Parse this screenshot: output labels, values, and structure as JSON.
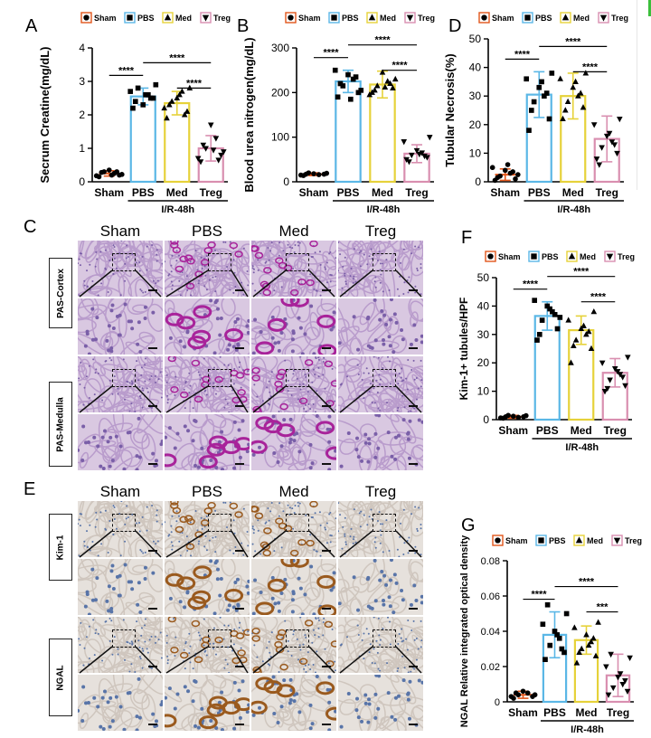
{
  "panel_labels": {
    "a": "A",
    "b": "B",
    "c": "C",
    "d": "D",
    "e": "E",
    "f": "F",
    "g": "G"
  },
  "legend": [
    {
      "name": "Sham",
      "color": "#e2561b",
      "marker": "circle"
    },
    {
      "name": "PBS",
      "color": "#5bb7e6",
      "marker": "square"
    },
    {
      "name": "Med",
      "color": "#e6d23a",
      "marker": "triangle-up"
    },
    {
      "name": "Treg",
      "color": "#d98fb0",
      "marker": "triangle-down"
    }
  ],
  "group_label": "I/R-48h",
  "significance": {
    "four": "****",
    "three": "***"
  },
  "histology": {
    "columns": [
      "Sham",
      "PBS",
      "Med",
      "Treg"
    ],
    "pas_rows": [
      "PAS-Cortex",
      "PAS-Medulla"
    ],
    "ihc_rows": [
      "Kim-1",
      "NGAL"
    ]
  },
  "chart_data": [
    {
      "id": "A",
      "type": "bar",
      "categories": [
        "Sham",
        "PBS",
        "Med",
        "Treg"
      ],
      "values": [
        0.25,
        2.55,
        2.35,
        1.0
      ],
      "errors": [
        0.08,
        0.25,
        0.35,
        0.38
      ],
      "ylabel": "Secrum Creatine(mg/dL)",
      "ylim": [
        0,
        4
      ],
      "yticks": [
        0,
        1,
        2,
        3,
        4
      ],
      "points": [
        [
          0.15,
          0.2,
          0.3,
          0.25,
          0.35,
          0.18,
          0.22,
          0.28,
          0.3,
          0.2
        ],
        [
          2.2,
          2.5,
          2.8,
          2.6,
          2.3,
          2.7,
          2.9,
          2.4,
          2.5,
          2.6
        ],
        [
          1.9,
          2.1,
          2.4,
          2.7,
          2.5,
          2.2,
          2.8,
          2.3,
          2.0,
          2.6
        ],
        [
          0.6,
          0.8,
          1.0,
          1.3,
          1.7,
          0.7,
          0.9,
          1.1,
          0.65,
          0.95
        ]
      ],
      "brackets": [
        {
          "from": 0,
          "to": 1,
          "level": 0,
          "label": "****"
        },
        {
          "from": 1,
          "to": 3,
          "level": 1,
          "label": "****"
        },
        {
          "from": 2,
          "to": 3,
          "level": 2,
          "label": "****"
        }
      ]
    },
    {
      "id": "B",
      "type": "bar",
      "categories": [
        "Sham",
        "PBS",
        "Med",
        "Treg"
      ],
      "values": [
        17,
        225,
        218,
        63
      ],
      "errors": [
        3,
        25,
        30,
        20
      ],
      "ylabel": "Blood urea nitrogen(mg/dL)",
      "ylim": [
        0,
        300
      ],
      "yticks": [
        0,
        100,
        200,
        300
      ],
      "points": [
        [
          14,
          17,
          20,
          16,
          18,
          15,
          19,
          17
        ],
        [
          190,
          200,
          215,
          230,
          240,
          250,
          205,
          220,
          235,
          185
        ],
        [
          200,
          210,
          215,
          225,
          245,
          195,
          230,
          205,
          220,
          212
        ],
        [
          50,
          55,
          60,
          65,
          70,
          90,
          100,
          45,
          58,
          62
        ]
      ],
      "brackets": [
        {
          "from": 0,
          "to": 1,
          "level": 0,
          "label": "****"
        },
        {
          "from": 1,
          "to": 3,
          "level": 1,
          "label": "****"
        },
        {
          "from": 2,
          "to": 3,
          "level": 2,
          "label": "****"
        }
      ]
    },
    {
      "id": "D",
      "type": "bar",
      "categories": [
        "Sham",
        "PBS",
        "Med",
        "Treg"
      ],
      "values": [
        2.5,
        30.5,
        30,
        15
      ],
      "errors": [
        2,
        8,
        8,
        8
      ],
      "ylabel": "Tubular Necrosis(%)",
      "ylim": [
        0,
        50
      ],
      "yticks": [
        0,
        10,
        20,
        30,
        40,
        50
      ],
      "points": [
        [
          0.5,
          1,
          2,
          3,
          4,
          5,
          2.5,
          1.5,
          3.5,
          6
        ],
        [
          18,
          22,
          28,
          30,
          33,
          36,
          38,
          25,
          31,
          35
        ],
        [
          22,
          26,
          28,
          30,
          33,
          36,
          38,
          25,
          31,
          35
        ],
        [
          8,
          10,
          12,
          14,
          16,
          20,
          22,
          6,
          13,
          17
        ]
      ],
      "brackets": [
        {
          "from": 0,
          "to": 1,
          "level": 0,
          "label": "****"
        },
        {
          "from": 1,
          "to": 3,
          "level": 1,
          "label": "****"
        },
        {
          "from": 2,
          "to": 3,
          "level": 2,
          "label": "****"
        }
      ]
    },
    {
      "id": "F",
      "type": "bar",
      "categories": [
        "Sham",
        "PBS",
        "Med",
        "Treg"
      ],
      "values": [
        1,
        36.5,
        31.5,
        16.5
      ],
      "errors": [
        0.5,
        5,
        5,
        5
      ],
      "ylabel": "Kim-1+ tubules/HPF",
      "ylim": [
        0,
        50
      ],
      "yticks": [
        0,
        10,
        20,
        30,
        40,
        50
      ],
      "points": [
        [
          0.5,
          1,
          1.5,
          0.8,
          1.2,
          0.6,
          1.4,
          1
        ],
        [
          28,
          32,
          35,
          38,
          40,
          42,
          36,
          30,
          37,
          39
        ],
        [
          20,
          25,
          28,
          30,
          32,
          35,
          38,
          26,
          31,
          33
        ],
        [
          10,
          12,
          14,
          16,
          18,
          20,
          22,
          11,
          15,
          17
        ]
      ],
      "brackets": [
        {
          "from": 0,
          "to": 1,
          "level": 0,
          "label": "****"
        },
        {
          "from": 1,
          "to": 3,
          "level": 1,
          "label": "****"
        },
        {
          "from": 2,
          "to": 3,
          "level": 2,
          "label": "****"
        }
      ]
    },
    {
      "id": "G",
      "type": "bar",
      "categories": [
        "Sham",
        "PBS",
        "Med",
        "Treg"
      ],
      "values": [
        0.004,
        0.038,
        0.035,
        0.015
      ],
      "errors": [
        0.002,
        0.013,
        0.008,
        0.012
      ],
      "ylabel": "NGAL Relative integrated optical density",
      "ylim": [
        0,
        0.08
      ],
      "yticks": [
        0,
        0.02,
        0.04,
        0.06,
        0.08
      ],
      "points": [
        [
          0.002,
          0.003,
          0.004,
          0.005,
          0.006,
          0.003,
          0.004,
          0.005
        ],
        [
          0.024,
          0.028,
          0.032,
          0.036,
          0.04,
          0.044,
          0.05,
          0.055,
          0.03,
          0.038
        ],
        [
          0.022,
          0.026,
          0.03,
          0.034,
          0.038,
          0.042,
          0.045,
          0.028,
          0.036,
          0.032
        ],
        [
          0.004,
          0.006,
          0.008,
          0.01,
          0.014,
          0.02,
          0.025,
          0.027,
          0.012,
          0.016
        ]
      ],
      "brackets": [
        {
          "from": 0,
          "to": 1,
          "level": 0,
          "label": "****"
        },
        {
          "from": 1,
          "to": 3,
          "level": 1,
          "label": "****"
        },
        {
          "from": 2,
          "to": 3,
          "level": 2,
          "label": "***"
        }
      ]
    }
  ]
}
